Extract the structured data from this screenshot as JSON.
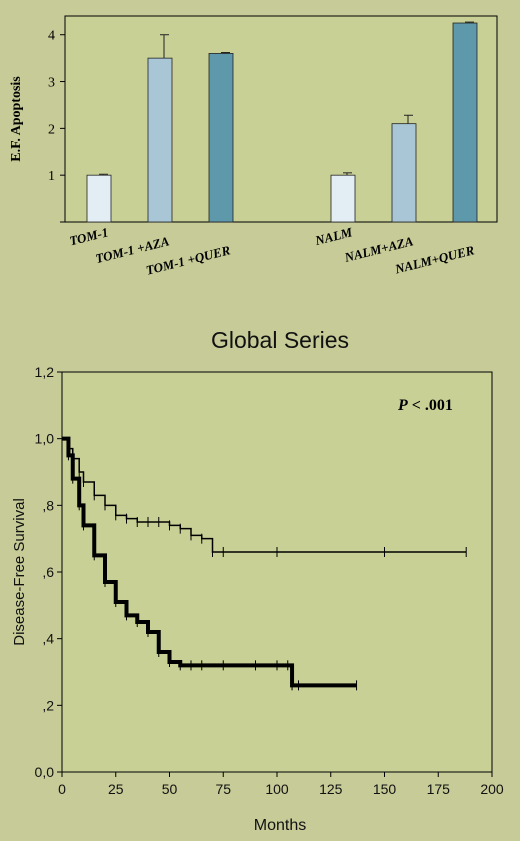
{
  "chart_data": [
    {
      "type": "bar",
      "ylabel": "E.F. Apoptosis",
      "ylim": [
        0,
        4.4
      ],
      "yticks": [
        1,
        2,
        3,
        4
      ],
      "categories": [
        "TOM-1",
        "TOM-1 +AZA",
        "TOM-1 +QUER",
        "NALM",
        "NALM+AZA",
        "NALM+QUER"
      ],
      "values": [
        1.0,
        3.5,
        3.6,
        1.0,
        2.1,
        4.25
      ],
      "errors": [
        0.02,
        0.5,
        0.02,
        0.05,
        0.18,
        0.02
      ],
      "colors": [
        "#e2eef4",
        "#a8c6d5",
        "#5e98ab",
        "#e2eef4",
        "#a8c6d5",
        "#5e98ab"
      ],
      "grid": false,
      "plot_background": "#c8d096"
    },
    {
      "type": "line",
      "title": "Global Series",
      "xlabel": "Months",
      "ylabel": "Disease-Free Survival",
      "xlim": [
        0,
        200
      ],
      "ylim": [
        0,
        1.2
      ],
      "xticks": [
        "0",
        "25",
        "50",
        "75",
        "100",
        "125",
        "150",
        "175",
        "200"
      ],
      "yticks": [
        "0,0",
        ",2",
        ",4",
        ",6",
        ",8",
        "1,0",
        "1,2"
      ],
      "annotation": {
        "italic": "P",
        "text": " < .001"
      },
      "grid": false,
      "series": [
        {
          "style": "thin",
          "x": [
            0,
            3,
            5,
            8,
            10,
            15,
            20,
            25,
            30,
            35,
            40,
            45,
            50,
            55,
            60,
            65,
            70,
            75,
            100,
            150,
            188
          ],
          "y": [
            1.0,
            0.97,
            0.94,
            0.9,
            0.87,
            0.83,
            0.8,
            0.77,
            0.76,
            0.75,
            0.75,
            0.75,
            0.74,
            0.73,
            0.71,
            0.7,
            0.66,
            0.66,
            0.66,
            0.66,
            0.66
          ]
        },
        {
          "style": "thick",
          "x": [
            0,
            3,
            5,
            8,
            10,
            15,
            20,
            25,
            30,
            35,
            40,
            45,
            50,
            55,
            60,
            65,
            75,
            90,
            100,
            105,
            107,
            110,
            137
          ],
          "y": [
            1.0,
            0.95,
            0.88,
            0.8,
            0.74,
            0.65,
            0.57,
            0.51,
            0.47,
            0.45,
            0.42,
            0.36,
            0.33,
            0.32,
            0.32,
            0.32,
            0.32,
            0.32,
            0.32,
            0.32,
            0.26,
            0.26,
            0.26
          ]
        }
      ]
    }
  ]
}
